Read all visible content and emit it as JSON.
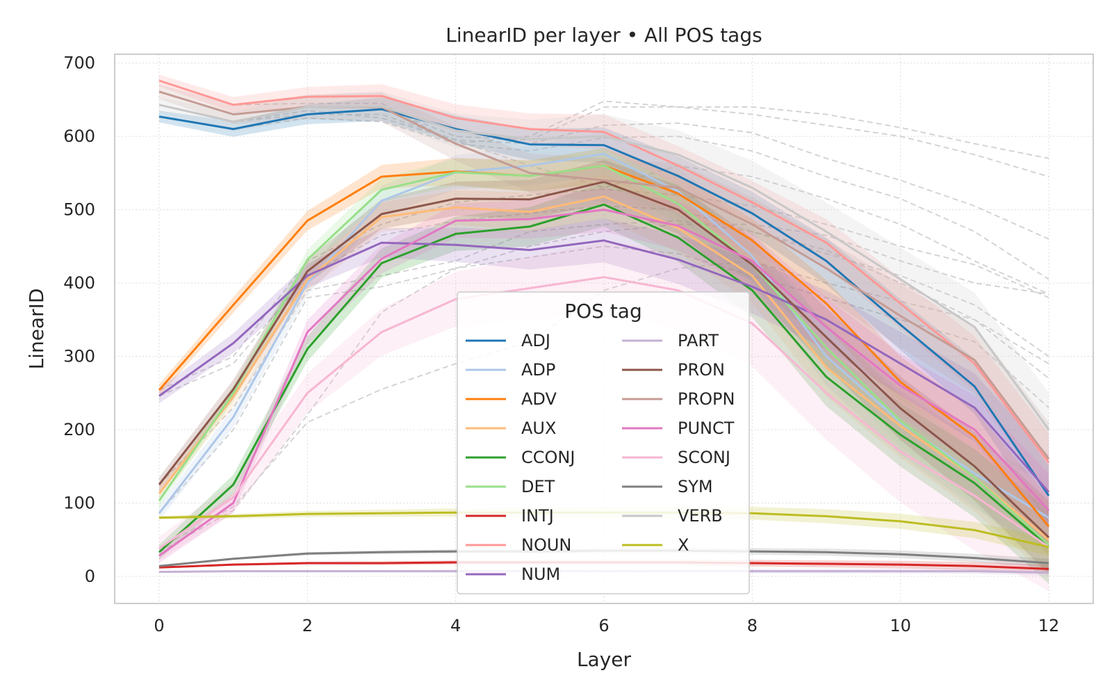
{
  "chart_data": {
    "type": "line",
    "title": "LinearID per layer • All POS tags",
    "xlabel": "Layer",
    "ylabel": "LinearID",
    "xlim": [
      -0.6,
      12.6
    ],
    "ylim": [
      -37,
      712
    ],
    "xticks": [
      0,
      2,
      4,
      6,
      8,
      10,
      12
    ],
    "yticks": [
      0,
      100,
      200,
      300,
      400,
      500,
      600,
      700
    ],
    "grid": true,
    "legend": {
      "title": "POS tag",
      "placement": "center-bottom",
      "columns": 2
    },
    "x": [
      0,
      1,
      2,
      3,
      4,
      5,
      6,
      7,
      8,
      9,
      10,
      11,
      12
    ],
    "band_description": "shaded band around each series",
    "series": [
      {
        "name": "ADJ",
        "color": "#1f77b4",
        "values": [
          627,
          610,
          630,
          637,
          610,
          589,
          588,
          546,
          495,
          430,
          343,
          259,
          110
        ],
        "band": 20
      },
      {
        "name": "ADP",
        "color": "#aec7e8",
        "values": [
          86,
          217,
          400,
          512,
          551,
          560,
          576,
          525,
          437,
          300,
          210,
          140,
          80
        ],
        "band": 25
      },
      {
        "name": "ADV",
        "color": "#ff7f0e",
        "values": [
          254,
          370,
          485,
          545,
          552,
          546,
          560,
          522,
          458,
          372,
          265,
          190,
          68
        ],
        "band": 20
      },
      {
        "name": "AUX",
        "color": "#ffbb78",
        "values": [
          113,
          245,
          405,
          490,
          503,
          497,
          518,
          475,
          410,
          285,
          205,
          135,
          50
        ],
        "band": 25
      },
      {
        "name": "CCONJ",
        "color": "#2ca02c",
        "values": [
          33,
          125,
          310,
          427,
          467,
          477,
          507,
          462,
          390,
          272,
          193,
          127,
          40
        ],
        "band": 25
      },
      {
        "name": "DET",
        "color": "#98df8a",
        "values": [
          103,
          250,
          432,
          527,
          551,
          546,
          560,
          508,
          425,
          312,
          212,
          135,
          43
        ],
        "band": 20
      },
      {
        "name": "INTJ",
        "color": "#d62728",
        "values": [
          12,
          16,
          18,
          18,
          19,
          19,
          19,
          19,
          18,
          17,
          16,
          14,
          10
        ],
        "band": 3
      },
      {
        "name": "NOUN",
        "color": "#ff9896",
        "values": [
          676,
          643,
          654,
          655,
          625,
          610,
          606,
          560,
          510,
          455,
          372,
          290,
          155
        ],
        "band": 20
      },
      {
        "name": "NUM",
        "color": "#9467bd",
        "values": [
          246,
          318,
          410,
          455,
          452,
          445,
          458,
          432,
          395,
          350,
          290,
          230,
          115
        ],
        "band": 25
      },
      {
        "name": "PART",
        "color": "#c5b0d5",
        "values": [
          6,
          7,
          7,
          7,
          7,
          7,
          7,
          7,
          7,
          7,
          7,
          7,
          5
        ],
        "band": 2
      },
      {
        "name": "PRON",
        "color": "#8c564b",
        "values": [
          125,
          255,
          416,
          494,
          515,
          514,
          538,
          500,
          425,
          326,
          229,
          150,
          53
        ],
        "band": 25
      },
      {
        "name": "PROPN",
        "color": "#c49c94",
        "values": [
          661,
          630,
          640,
          640,
          590,
          550,
          540,
          530,
          480,
          420,
          355,
          295,
          160
        ],
        "band": 25
      },
      {
        "name": "PUNCT",
        "color": "#e377c2",
        "values": [
          28,
          100,
          333,
          433,
          485,
          487,
          500,
          478,
          430,
          340,
          260,
          200,
          90
        ],
        "band": 25
      },
      {
        "name": "SCONJ",
        "color": "#f7b6d2",
        "values": [
          38,
          108,
          250,
          333,
          378,
          393,
          408,
          390,
          345,
          250,
          170,
          110,
          40
        ],
        "band": 40
      },
      {
        "name": "SYM",
        "color": "#7f7f7f",
        "values": [
          14,
          24,
          31,
          33,
          34,
          34,
          35,
          35,
          34,
          33,
          30,
          25,
          18
        ],
        "band": 3
      },
      {
        "name": "VERB",
        "color": "#c7c7c7",
        "values": [
          643,
          620,
          640,
          641,
          608,
          596,
          600,
          575,
          530,
          470,
          405,
          340,
          200
        ],
        "band": 25
      },
      {
        "name": "X",
        "color": "#bcbd22",
        "values": [
          80,
          82,
          85,
          86,
          87,
          87,
          87,
          87,
          86,
          82,
          75,
          63,
          40
        ],
        "band": 6
      }
    ],
    "background_dashed_series": [
      [
        627,
        610,
        625,
        620,
        590,
        600,
        648,
        640,
        640,
        630,
        612,
        590,
        570
      ],
      [
        661,
        630,
        640,
        640,
        600,
        595,
        640,
        640,
        630,
        615,
        600,
        575,
        545
      ],
      [
        643,
        620,
        635,
        625,
        595,
        590,
        615,
        618,
        605,
        570,
        540,
        505,
        460
      ],
      [
        676,
        643,
        645,
        645,
        590,
        580,
        598,
        600,
        580,
        545,
        515,
        470,
        405
      ],
      [
        643,
        620,
        630,
        630,
        595,
        560,
        530,
        560,
        545,
        515,
        480,
        430,
        385
      ],
      [
        254,
        300,
        430,
        480,
        510,
        520,
        528,
        520,
        505,
        480,
        450,
        425,
        380
      ],
      [
        246,
        290,
        410,
        465,
        485,
        495,
        505,
        500,
        470,
        440,
        410,
        370,
        300
      ],
      [
        125,
        230,
        390,
        410,
        430,
        470,
        480,
        485,
        470,
        445,
        400,
        350,
        290
      ],
      [
        86,
        200,
        380,
        395,
        420,
        450,
        470,
        480,
        480,
        465,
        430,
        400,
        385
      ],
      [
        38,
        95,
        210,
        255,
        290,
        320,
        390,
        420,
        430,
        400,
        375,
        350,
        270
      ],
      [
        33,
        90,
        220,
        360,
        420,
        435,
        450,
        440,
        410,
        380,
        350,
        320,
        230
      ]
    ]
  }
}
